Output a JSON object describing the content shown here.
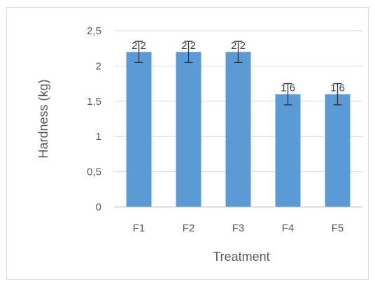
{
  "chart_data": {
    "type": "bar",
    "categories": [
      "F1",
      "F2",
      "F3",
      "F4",
      "F5"
    ],
    "values": [
      2.2,
      2.2,
      2.2,
      1.6,
      1.6
    ],
    "data_labels": [
      "2,2",
      "2,2",
      "2,2",
      "1,6",
      "1,6"
    ],
    "error": [
      0.15,
      0.15,
      0.15,
      0.15,
      0.15
    ],
    "xlabel": "Treatment",
    "ylabel": "Hardness (kg)",
    "ylim": [
      0,
      2.5
    ],
    "yticks": [
      0,
      0.5,
      1,
      1.5,
      2,
      2.5
    ],
    "ytick_labels": [
      "0",
      "0,5",
      "1",
      "1,5",
      "2",
      "2,5"
    ],
    "grid": true,
    "bar_color": "#5b9bd5"
  }
}
